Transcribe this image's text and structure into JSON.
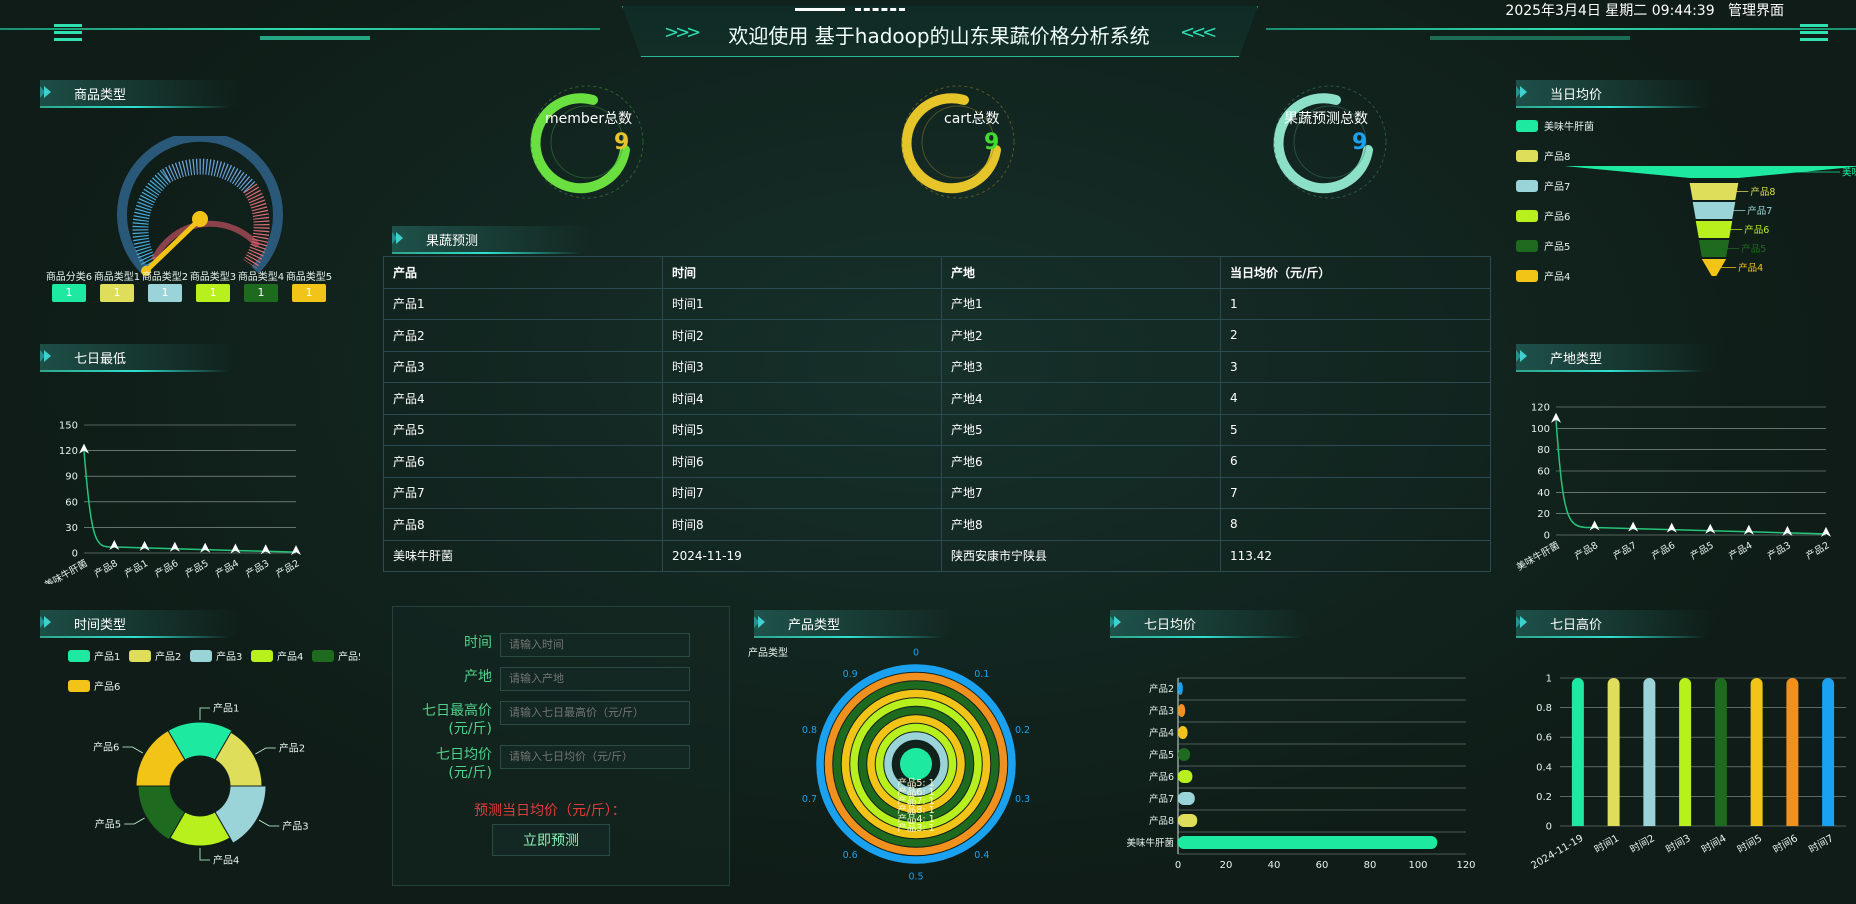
{
  "header": {
    "title": "欢迎使用 基于hadoop的山东果蔬价格分析系统",
    "datetime": "2025年3月4日 星期二 09:44:39",
    "admin_link": "管理界面"
  },
  "colors": {
    "p1": "#1de9a0",
    "p2": "#dede5a",
    "p3": "#9ad3d8",
    "p4": "#b8f01e",
    "p5": "#1e6a1e",
    "p6": "#f2c417",
    "orange": "#f0901e",
    "blue": "#1aa2f0",
    "line": "#27c47a"
  },
  "sections": {
    "goods_type": "商品类型",
    "seven_day_low": "七日最低",
    "time_type": "时间类型",
    "prediction": "果蔬预测",
    "product_type": "产品类型",
    "seven_day_avg": "七日均价",
    "daily_avg": "当日均价",
    "origin_type": "产地类型",
    "seven_day_high": "七日高价"
  },
  "counters": [
    {
      "label": "member总数",
      "value": "9",
      "color": "#e6c52a"
    },
    {
      "label": "cart总数",
      "value": "9",
      "color": "#3fdc2f"
    },
    {
      "label": "果蔬预测总数",
      "value": "9",
      "color": "#1aa2f0"
    }
  ],
  "goods_gauge": {
    "categories": [
      "商品分类6",
      "商品类型1",
      "商品类型2",
      "商品类型3",
      "商品类型4",
      "商品类型5"
    ],
    "values": [
      "1",
      "1",
      "1",
      "1",
      "1",
      "1"
    ]
  },
  "table": {
    "headers": [
      "产品",
      "时间",
      "产地",
      "当日均价（元/斤）"
    ],
    "rows": [
      [
        "产品1",
        "时间1",
        "产地1",
        "1"
      ],
      [
        "产品2",
        "时间2",
        "产地2",
        "2"
      ],
      [
        "产品3",
        "时间3",
        "产地3",
        "3"
      ],
      [
        "产品4",
        "时间4",
        "产地4",
        "4"
      ],
      [
        "产品5",
        "时间5",
        "产地5",
        "5"
      ],
      [
        "产品6",
        "时间6",
        "产地6",
        "6"
      ],
      [
        "产品7",
        "时间7",
        "产地7",
        "7"
      ],
      [
        "产品8",
        "时间8",
        "产地8",
        "8"
      ],
      [
        "美味牛肝菌",
        "2024-11-19",
        "陕西安康市宁陕县",
        "113.42"
      ]
    ]
  },
  "form": {
    "fields": [
      {
        "label": "时间",
        "placeholder": "请输入时间"
      },
      {
        "label": "产地",
        "placeholder": "请输入产地"
      },
      {
        "label": "七日最高价",
        "label2": "(元/斤)",
        "placeholder": "请输入七日最高价（元/斤）"
      },
      {
        "label": "七日均价",
        "label2": "(元/斤)",
        "placeholder": "请输入七日均价（元/斤）"
      }
    ],
    "result_label": "预测当日均价（元/斤）：",
    "submit": "立即预测"
  },
  "chart_data": [
    {
      "id": "seven_day_low",
      "type": "line",
      "title": "七日最低",
      "categories": [
        "美味牛肝菌",
        "产品8",
        "产品1",
        "产品6",
        "产品5",
        "产品4",
        "产品3",
        "产品2"
      ],
      "values": [
        120,
        7,
        6,
        5,
        4,
        3,
        2,
        1
      ],
      "yticks": [
        "0",
        "30",
        "60",
        "90",
        "120",
        "150"
      ],
      "ylim": [
        0,
        150
      ]
    },
    {
      "id": "origin_type",
      "type": "line",
      "title": "产地类型",
      "categories": [
        "美味牛肝菌",
        "产品8",
        "产品7",
        "产品6",
        "产品5",
        "产品4",
        "产品3",
        "产品2"
      ],
      "values": [
        108,
        7,
        6,
        5,
        4,
        3,
        2,
        1
      ],
      "yticks": [
        "0",
        "20",
        "40",
        "60",
        "80",
        "100",
        "120"
      ],
      "ylim": [
        0,
        120
      ]
    },
    {
      "id": "time_type",
      "type": "pie",
      "title": "时间类型",
      "labels": [
        "产品1",
        "产品2",
        "产品3",
        "产品4",
        "产品5",
        "产品6"
      ],
      "values": [
        1,
        1,
        1,
        1,
        1,
        1
      ]
    },
    {
      "id": "daily_avg",
      "type": "funnel",
      "title": "当日均价",
      "labels": [
        "美味牛肝菌",
        "产品8",
        "产品7",
        "产品6",
        "产品5",
        "产品4"
      ],
      "values": [
        113.42,
        8,
        7,
        6,
        5,
        4
      ]
    },
    {
      "id": "product_type",
      "type": "radial_bar",
      "title": "产品类型",
      "subtitle": "产品类型",
      "ring_labels": [
        "产品5: 1",
        "产品6: 1",
        "产品7: 1",
        "产品8: 1",
        "产品4: 1",
        "产品3: 1"
      ],
      "angle_ticks": [
        "0",
        "0.1",
        "0.2",
        "0.3",
        "0.4",
        "0.5",
        "0.6",
        "0.7",
        "0.8",
        "0.9"
      ]
    },
    {
      "id": "seven_day_avg",
      "type": "bar",
      "orientation": "horizontal",
      "title": "七日均价",
      "categories": [
        "产品2",
        "产品3",
        "产品4",
        "产品5",
        "产品6",
        "产品7",
        "产品8",
        "美味牛肝菌"
      ],
      "values": [
        2,
        3,
        4,
        5,
        6,
        7,
        8,
        108
      ],
      "xticks": [
        "0",
        "20",
        "40",
        "60",
        "80",
        "100",
        "120"
      ],
      "xlim": [
        0,
        120
      ]
    },
    {
      "id": "seven_day_high",
      "type": "bar",
      "title": "七日高价",
      "categories": [
        "2024-11-19",
        "时间1",
        "时间2",
        "时间3",
        "时间4",
        "时间5",
        "时间6",
        "时间7"
      ],
      "values": [
        1,
        1,
        1,
        1,
        1,
        1,
        1,
        1
      ],
      "yticks": [
        "0",
        "0.2",
        "0.4",
        "0.6",
        "0.8",
        "1"
      ],
      "ylim": [
        0,
        1
      ]
    }
  ]
}
